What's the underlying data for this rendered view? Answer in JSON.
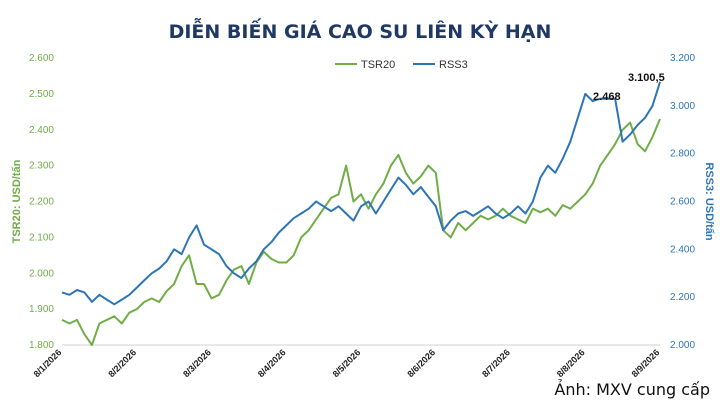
{
  "chart_data": {
    "type": "line",
    "title": "DIỄN BIẾN GIÁ CAO SU LIÊN KỲ HẠN",
    "ylabel_left": "TSR20: USD/tấn",
    "ylabel_right": "RSS3: USD/tấn",
    "ylim_left": [
      1.8,
      2.6
    ],
    "ylim_right": [
      2.0,
      3.2
    ],
    "yticks_left": [
      "1.800",
      "1.900",
      "2.000",
      "2.100",
      "2.200",
      "2.300",
      "2.400",
      "2.500",
      "2.600"
    ],
    "yticks_right": [
      "2.000",
      "2.200",
      "2.400",
      "2.600",
      "2.800",
      "3.000",
      "3.200"
    ],
    "categories": [
      "8/1/2026",
      "8/2/2026",
      "8/3/2026",
      "8/4/2026",
      "8/5/2026",
      "8/6/2026",
      "8/7/2026",
      "8/8/2026",
      "8/9/2026"
    ],
    "legend_position": "top",
    "grid": false,
    "series": [
      {
        "name": "TSR20",
        "axis": "left",
        "color": "#70ad47",
        "x": [
          0,
          0.1,
          0.2,
          0.3,
          0.4,
          0.5,
          0.6,
          0.7,
          0.8,
          0.9,
          1,
          1.1,
          1.2,
          1.3,
          1.4,
          1.5,
          1.6,
          1.7,
          1.8,
          1.9,
          2,
          2.1,
          2.2,
          2.3,
          2.4,
          2.5,
          2.6,
          2.7,
          2.8,
          2.9,
          3,
          3.1,
          3.2,
          3.3,
          3.4,
          3.5,
          3.6,
          3.7,
          3.8,
          3.9,
          4,
          4.1,
          4.2,
          4.3,
          4.4,
          4.5,
          4.6,
          4.7,
          4.8,
          4.9,
          5,
          5.1,
          5.2,
          5.3,
          5.4,
          5.5,
          5.6,
          5.7,
          5.8,
          5.9,
          6,
          6.1,
          6.2,
          6.3,
          6.4,
          6.5,
          6.6,
          6.7,
          6.8,
          6.9,
          7,
          7.1,
          7.2,
          7.3,
          7.4,
          7.5,
          7.6,
          7.7,
          7.8,
          7.9,
          8
        ],
        "values": [
          1.87,
          1.86,
          1.87,
          1.83,
          1.8,
          1.86,
          1.87,
          1.88,
          1.86,
          1.89,
          1.9,
          1.92,
          1.93,
          1.92,
          1.95,
          1.97,
          2.02,
          2.05,
          1.97,
          1.97,
          1.93,
          1.94,
          1.98,
          2.01,
          2.02,
          1.97,
          2.03,
          2.06,
          2.04,
          2.03,
          2.03,
          2.05,
          2.1,
          2.12,
          2.15,
          2.18,
          2.21,
          2.22,
          2.3,
          2.2,
          2.22,
          2.18,
          2.22,
          2.25,
          2.3,
          2.33,
          2.28,
          2.25,
          2.27,
          2.3,
          2.28,
          2.12,
          2.1,
          2.14,
          2.12,
          2.14,
          2.16,
          2.15,
          2.16,
          2.18,
          2.16,
          2.15,
          2.14,
          2.18,
          2.17,
          2.18,
          2.16,
          2.19,
          2.18,
          2.2,
          2.22,
          2.25,
          2.3,
          2.33,
          2.36,
          2.4,
          2.42,
          2.36,
          2.34,
          2.38,
          2.43
        ]
      },
      {
        "name": "RSS3",
        "axis": "right",
        "color": "#2e75b6",
        "x": [
          0,
          0.1,
          0.2,
          0.3,
          0.4,
          0.5,
          0.6,
          0.7,
          0.8,
          0.9,
          1,
          1.1,
          1.2,
          1.3,
          1.4,
          1.5,
          1.6,
          1.7,
          1.8,
          1.9,
          2,
          2.1,
          2.2,
          2.3,
          2.4,
          2.5,
          2.6,
          2.7,
          2.8,
          2.9,
          3,
          3.1,
          3.2,
          3.3,
          3.4,
          3.5,
          3.6,
          3.7,
          3.8,
          3.9,
          4,
          4.1,
          4.2,
          4.3,
          4.4,
          4.5,
          4.6,
          4.7,
          4.8,
          4.9,
          5,
          5.1,
          5.2,
          5.3,
          5.4,
          5.5,
          5.6,
          5.7,
          5.8,
          5.9,
          6,
          6.1,
          6.2,
          6.3,
          6.4,
          6.5,
          6.6,
          6.7,
          6.8,
          6.9,
          7,
          7.1,
          7.2,
          7.3,
          7.4,
          7.5,
          7.6,
          7.7,
          7.8,
          7.9,
          8
        ],
        "values": [
          2.22,
          2.21,
          2.23,
          2.22,
          2.18,
          2.21,
          2.19,
          2.17,
          2.19,
          2.21,
          2.24,
          2.27,
          2.3,
          2.32,
          2.35,
          2.4,
          2.38,
          2.45,
          2.5,
          2.42,
          2.4,
          2.38,
          2.33,
          2.3,
          2.28,
          2.32,
          2.35,
          2.4,
          2.43,
          2.47,
          2.5,
          2.53,
          2.55,
          2.57,
          2.6,
          2.58,
          2.56,
          2.58,
          2.55,
          2.52,
          2.58,
          2.6,
          2.55,
          2.6,
          2.65,
          2.7,
          2.67,
          2.63,
          2.66,
          2.62,
          2.58,
          2.48,
          2.52,
          2.55,
          2.56,
          2.54,
          2.56,
          2.58,
          2.55,
          2.53,
          2.55,
          2.58,
          2.55,
          2.6,
          2.7,
          2.75,
          2.72,
          2.78,
          2.85,
          2.95,
          3.05,
          3.02,
          3.03,
          3.03,
          3.03,
          2.85,
          2.88,
          2.92,
          2.95,
          3.0,
          3.1
        ]
      }
    ],
    "annotations": [
      {
        "text": "2.468",
        "series": "TSR20",
        "x": 7.8
      },
      {
        "text": "3.100,5",
        "series": "RSS3",
        "x": 8
      }
    ]
  },
  "caption": "Ảnh: MXV cung cấp"
}
